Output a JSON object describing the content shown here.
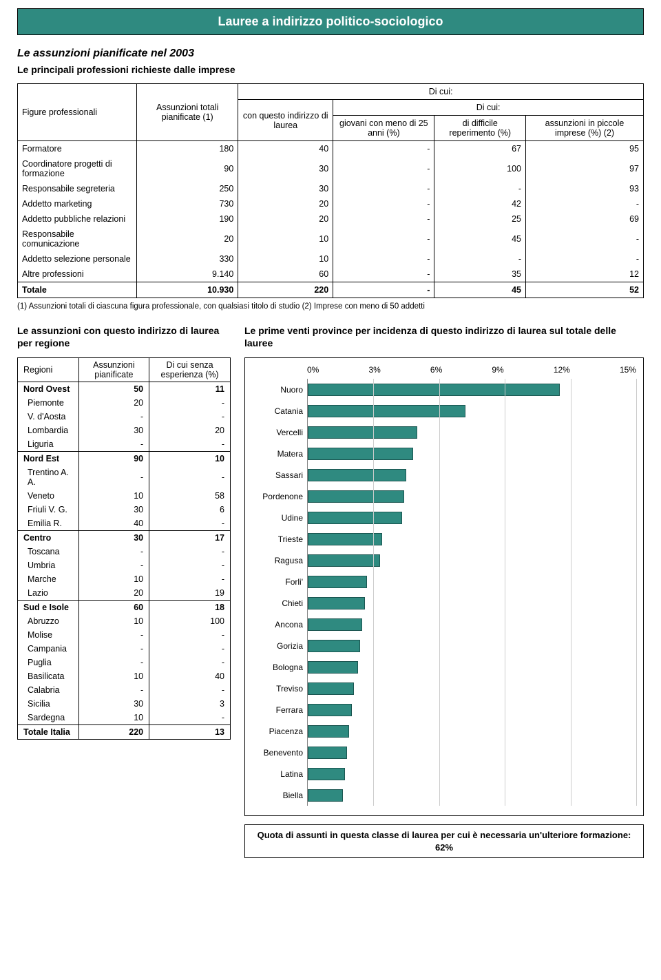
{
  "title": "Lauree a indirizzo politico-sociologico",
  "heading1": "Le assunzioni pianificate nel 2003",
  "heading2": "Le principali professioni richieste dalle imprese",
  "prof_table": {
    "col_headers": {
      "figure": "Figure professionali",
      "assunzioni": "Assunzioni totali pianificate (1)",
      "di_cui": "Di cui:",
      "di_cui_inner": "Di cui:",
      "con_questo": "con questo indirizzo di laurea",
      "giovani": "giovani con meno di 25 anni (%)",
      "difficile": "di difficile reperimento (%)",
      "piccole": "assunzioni in piccole imprese (%) (2)"
    },
    "rows": [
      {
        "name": "Formatore",
        "a": "180",
        "b": "40",
        "c": "-",
        "d": "67",
        "e": "95"
      },
      {
        "name": "Coordinatore progetti di formazione",
        "a": "90",
        "b": "30",
        "c": "-",
        "d": "100",
        "e": "97"
      },
      {
        "name": "Responsabile segreteria",
        "a": "250",
        "b": "30",
        "c": "-",
        "d": "-",
        "e": "93"
      },
      {
        "name": "Addetto marketing",
        "a": "730",
        "b": "20",
        "c": "-",
        "d": "42",
        "e": "-"
      },
      {
        "name": "Addetto pubbliche relazioni",
        "a": "190",
        "b": "20",
        "c": "-",
        "d": "25",
        "e": "69"
      },
      {
        "name": "Responsabile comunicazione",
        "a": "20",
        "b": "10",
        "c": "-",
        "d": "45",
        "e": "-"
      },
      {
        "name": "Addetto selezione personale",
        "a": "330",
        "b": "10",
        "c": "-",
        "d": "-",
        "e": "-"
      },
      {
        "name": "Altre professioni",
        "a": "9.140",
        "b": "60",
        "c": "-",
        "d": "35",
        "e": "12"
      }
    ],
    "total": {
      "name": "Totale",
      "a": "10.930",
      "b": "220",
      "c": "-",
      "d": "45",
      "e": "52"
    }
  },
  "footnote": "(1) Assunzioni totali di ciascuna figura professionale, con qualsiasi titolo di studio    (2) Imprese con meno di 50 addetti",
  "region_heading": "Le assunzioni con questo indirizzo di laurea per regione",
  "region_table": {
    "headers": {
      "region": "Regioni",
      "assunzioni": "Assunzioni pianificate",
      "senza": "Di cui senza esperienza (%)"
    },
    "groups": [
      {
        "bold": {
          "name": "Nord Ovest",
          "a": "50",
          "b": "11"
        },
        "rows": [
          {
            "name": "Piemonte",
            "a": "20",
            "b": "-"
          },
          {
            "name": "V. d'Aosta",
            "a": "-",
            "b": "-"
          },
          {
            "name": "Lombardia",
            "a": "30",
            "b": "20"
          },
          {
            "name": "Liguria",
            "a": "-",
            "b": "-"
          }
        ]
      },
      {
        "bold": {
          "name": "Nord Est",
          "a": "90",
          "b": "10"
        },
        "rows": [
          {
            "name": "Trentino A. A.",
            "a": "-",
            "b": "-"
          },
          {
            "name": "Veneto",
            "a": "10",
            "b": "58"
          },
          {
            "name": "Friuli V. G.",
            "a": "30",
            "b": "6"
          },
          {
            "name": "Emilia R.",
            "a": "40",
            "b": "-"
          }
        ]
      },
      {
        "bold": {
          "name": "Centro",
          "a": "30",
          "b": "17"
        },
        "rows": [
          {
            "name": "Toscana",
            "a": "-",
            "b": "-"
          },
          {
            "name": "Umbria",
            "a": "-",
            "b": "-"
          },
          {
            "name": "Marche",
            "a": "10",
            "b": "-"
          },
          {
            "name": "Lazio",
            "a": "20",
            "b": "19"
          }
        ]
      },
      {
        "bold": {
          "name": "Sud e Isole",
          "a": "60",
          "b": "18"
        },
        "rows": [
          {
            "name": "Abruzzo",
            "a": "10",
            "b": "100"
          },
          {
            "name": "Molise",
            "a": "-",
            "b": "-"
          },
          {
            "name": "Campania",
            "a": "-",
            "b": "-"
          },
          {
            "name": "Puglia",
            "a": "-",
            "b": "-"
          },
          {
            "name": "Basilicata",
            "a": "10",
            "b": "40"
          },
          {
            "name": "Calabria",
            "a": "-",
            "b": "-"
          },
          {
            "name": "Sicilia",
            "a": "30",
            "b": "3"
          },
          {
            "name": "Sardegna",
            "a": "10",
            "b": "-"
          }
        ]
      }
    ],
    "total": {
      "name": "Totale Italia",
      "a": "220",
      "b": "13"
    }
  },
  "chart": {
    "heading": "Le prime venti province per incidenza di questo indirizzo di laurea sul totale delle lauree",
    "x_ticks": [
      "0%",
      "3%",
      "6%",
      "9%",
      "12%",
      "15%"
    ],
    "x_max": 15,
    "grid_positions_pct": [
      0,
      20,
      40,
      60,
      80,
      100
    ],
    "bar_color": "#2f8a80",
    "grid_color": "#cccccc",
    "bars": [
      {
        "label": "Nuoro",
        "value": 11.5
      },
      {
        "label": "Catania",
        "value": 7.2
      },
      {
        "label": "Vercelli",
        "value": 5.0
      },
      {
        "label": "Matera",
        "value": 4.8
      },
      {
        "label": "Sassari",
        "value": 4.5
      },
      {
        "label": "Pordenone",
        "value": 4.4
      },
      {
        "label": "Udine",
        "value": 4.3
      },
      {
        "label": "Trieste",
        "value": 3.4
      },
      {
        "label": "Ragusa",
        "value": 3.3
      },
      {
        "label": "Forli'",
        "value": 2.7
      },
      {
        "label": "Chieti",
        "value": 2.6
      },
      {
        "label": "Ancona",
        "value": 2.5
      },
      {
        "label": "Gorizia",
        "value": 2.4
      },
      {
        "label": "Bologna",
        "value": 2.3
      },
      {
        "label": "Treviso",
        "value": 2.1
      },
      {
        "label": "Ferrara",
        "value": 2.0
      },
      {
        "label": "Piacenza",
        "value": 1.9
      },
      {
        "label": "Benevento",
        "value": 1.8
      },
      {
        "label": "Latina",
        "value": 1.7
      },
      {
        "label": "Biella",
        "value": 1.6
      }
    ],
    "caption": "Quota di assunti in questa classe di laurea per cui è necessaria un'ulteriore formazione: 62%"
  }
}
